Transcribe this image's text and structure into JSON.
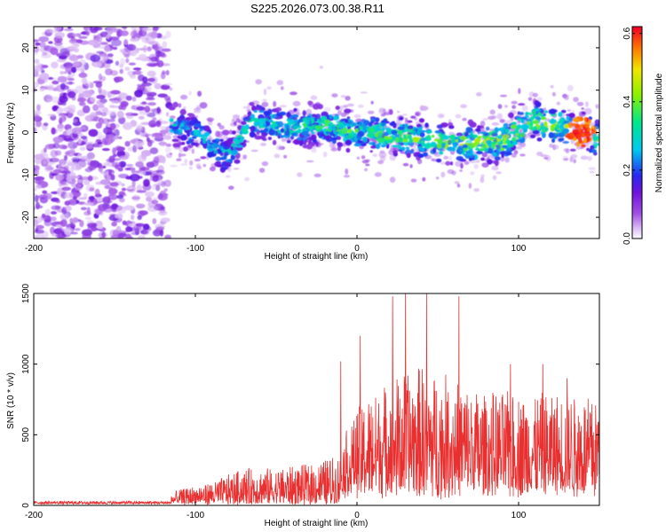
{
  "chart_data": [
    {
      "type": "heatmap",
      "title": "S225.2026.073.00.38.R11",
      "xlabel": "Height of straight line (km)",
      "ylabel": "Frequency (Hz)",
      "xlim": [
        -200,
        150
      ],
      "ylim": [
        -25,
        25
      ],
      "xticks": [
        -200,
        -100,
        0,
        100
      ],
      "xtick_labels": [
        "-200",
        "-100",
        "0",
        "100"
      ],
      "yticks": [
        -20,
        -10,
        0,
        10,
        20
      ],
      "ytick_labels": [
        "-20",
        "-10",
        "0",
        "10",
        "20"
      ],
      "colorbar": {
        "label": "Normalized spectral amplitude",
        "range": [
          0,
          0.62
        ],
        "ticks": [
          0,
          0.2,
          0.4,
          0.6
        ],
        "tick_labels": [
          "0.0",
          "0.2",
          "0.4",
          "0.6"
        ],
        "colormap": "rainbow (white-violet-blue-cyan-green-yellow-red)"
      },
      "signal_band": {
        "description": "noise scatter from -200 to -120 km; signal band centered near 0 Hz from -115 to 150 km",
        "centerline": [
          {
            "x": -115,
            "y": 2
          },
          {
            "x": -95,
            "y": -1
          },
          {
            "x": -80,
            "y": -6
          },
          {
            "x": -65,
            "y": 3
          },
          {
            "x": -40,
            "y": 1
          },
          {
            "x": -20,
            "y": 2
          },
          {
            "x": 0,
            "y": 0
          },
          {
            "x": 30,
            "y": -1
          },
          {
            "x": 60,
            "y": -3
          },
          {
            "x": 90,
            "y": -2
          },
          {
            "x": 110,
            "y": 3
          },
          {
            "x": 130,
            "y": 1
          },
          {
            "x": 150,
            "y": -1
          }
        ],
        "peak": {
          "x": 138,
          "y": 0,
          "amplitude": 0.6
        }
      }
    },
    {
      "type": "line",
      "xlabel": "Height of straight line (km)",
      "ylabel": "SNR (10 * v/v)",
      "xlim": [
        -200,
        150
      ],
      "ylim": [
        0,
        1500
      ],
      "xticks": [
        -200,
        -100,
        0,
        100
      ],
      "xtick_labels": [
        "-200",
        "-100",
        "0",
        "100"
      ],
      "yticks": [
        0,
        500,
        1000,
        1500
      ],
      "ytick_labels": [
        "0",
        "500",
        "1000",
        "1500"
      ],
      "color": "#e83030",
      "envelope": [
        {
          "x": -200,
          "y": 30
        },
        {
          "x": -120,
          "y": 30
        },
        {
          "x": -110,
          "y": 100
        },
        {
          "x": -90,
          "y": 150
        },
        {
          "x": -70,
          "y": 250
        },
        {
          "x": -50,
          "y": 250
        },
        {
          "x": -30,
          "y": 280
        },
        {
          "x": -10,
          "y": 350
        },
        {
          "x": 0,
          "y": 600
        },
        {
          "x": 20,
          "y": 800
        },
        {
          "x": 40,
          "y": 900
        },
        {
          "x": 60,
          "y": 800
        },
        {
          "x": 80,
          "y": 700
        },
        {
          "x": 100,
          "y": 700
        },
        {
          "x": 120,
          "y": 700
        },
        {
          "x": 150,
          "y": 700
        }
      ],
      "spikes": [
        {
          "x": -10,
          "y": 1020
        },
        {
          "x": 2,
          "y": 1200
        },
        {
          "x": 22,
          "y": 1480
        },
        {
          "x": 30,
          "y": 1520
        },
        {
          "x": 43,
          "y": 1520
        },
        {
          "x": 63,
          "y": 1480
        },
        {
          "x": 95,
          "y": 1000
        },
        {
          "x": 115,
          "y": 1000
        },
        {
          "x": 130,
          "y": 900
        }
      ]
    }
  ]
}
